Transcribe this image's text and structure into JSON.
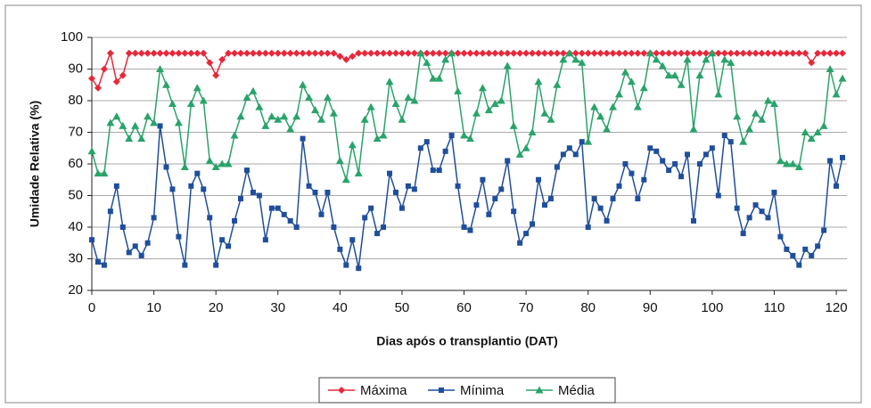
{
  "chart_data": {
    "type": "line",
    "xlabel": "Dias após o transplantio (DAT)",
    "ylabel": "Umidade Relativa (%)",
    "x": [
      0,
      1,
      2,
      3,
      4,
      5,
      6,
      7,
      8,
      9,
      10,
      11,
      12,
      13,
      14,
      15,
      16,
      17,
      18,
      19,
      20,
      21,
      22,
      23,
      24,
      25,
      26,
      27,
      28,
      29,
      30,
      31,
      32,
      33,
      34,
      35,
      36,
      37,
      38,
      39,
      40,
      41,
      42,
      43,
      44,
      45,
      46,
      47,
      48,
      49,
      50,
      51,
      52,
      53,
      54,
      55,
      56,
      57,
      58,
      59,
      60,
      61,
      62,
      63,
      64,
      65,
      66,
      67,
      68,
      69,
      70,
      71,
      72,
      73,
      74,
      75,
      76,
      77,
      78,
      79,
      80,
      81,
      82,
      83,
      84,
      85,
      86,
      87,
      88,
      89,
      90,
      91,
      92,
      93,
      94,
      95,
      96,
      97,
      98,
      99,
      100,
      101,
      102,
      103,
      104,
      105,
      106,
      107,
      108,
      109,
      110,
      111,
      112,
      113,
      114,
      115,
      116,
      117,
      118,
      119,
      120,
      121
    ],
    "series": [
      {
        "name": "Máxima",
        "color": "#e8283a",
        "marker": "diamond",
        "values": [
          87,
          84,
          90,
          95,
          86,
          88,
          95,
          95,
          95,
          95,
          95,
          95,
          95,
          95,
          95,
          95,
          95,
          95,
          95,
          92,
          88,
          93,
          95,
          95,
          95,
          95,
          95,
          95,
          95,
          95,
          95,
          95,
          95,
          95,
          95,
          95,
          95,
          95,
          95,
          95,
          94,
          93,
          94,
          95,
          95,
          95,
          95,
          95,
          95,
          95,
          95,
          95,
          95,
          95,
          95,
          95,
          95,
          95,
          95,
          95,
          95,
          95,
          95,
          95,
          95,
          95,
          95,
          95,
          95,
          95,
          95,
          95,
          95,
          95,
          95,
          95,
          95,
          95,
          95,
          95,
          95,
          95,
          95,
          95,
          95,
          95,
          95,
          95,
          95,
          95,
          95,
          95,
          95,
          95,
          95,
          95,
          95,
          95,
          95,
          95,
          95,
          95,
          95,
          95,
          95,
          95,
          95,
          95,
          95,
          95,
          95,
          95,
          95,
          95,
          95,
          95,
          92,
          95,
          95,
          95,
          95,
          95
        ]
      },
      {
        "name": "Mínima",
        "color": "#1f4e9c",
        "marker": "square",
        "values": [
          36,
          29,
          28,
          45,
          53,
          40,
          32,
          34,
          31,
          35,
          43,
          72,
          59,
          52,
          37,
          28,
          53,
          57,
          52,
          43,
          28,
          36,
          34,
          42,
          49,
          58,
          51,
          50,
          36,
          46,
          46,
          44,
          42,
          40,
          68,
          53,
          51,
          44,
          51,
          40,
          33,
          28,
          36,
          27,
          43,
          46,
          38,
          40,
          57,
          51,
          46,
          53,
          52,
          65,
          67,
          58,
          58,
          64,
          69,
          53,
          40,
          39,
          47,
          55,
          44,
          49,
          52,
          61,
          45,
          35,
          38,
          41,
          55,
          47,
          49,
          59,
          63,
          65,
          63,
          67,
          40,
          49,
          46,
          42,
          49,
          53,
          60,
          57,
          49,
          55,
          65,
          64,
          61,
          58,
          60,
          56,
          63,
          42,
          60,
          63,
          65,
          50,
          69,
          67,
          46,
          38,
          43,
          47,
          45,
          43,
          51,
          37,
          33,
          31,
          28,
          33,
          31,
          34,
          39,
          61,
          53,
          62
        ]
      },
      {
        "name": "Média",
        "color": "#2aa36b",
        "marker": "triangle",
        "values": [
          64,
          57,
          57,
          73,
          75,
          72,
          68,
          72,
          68,
          75,
          73,
          90,
          85,
          79,
          73,
          59,
          79,
          84,
          80,
          61,
          59,
          60,
          60,
          69,
          75,
          81,
          83,
          78,
          72,
          75,
          74,
          75,
          71,
          75,
          85,
          81,
          77,
          74,
          81,
          76,
          61,
          55,
          66,
          57,
          74,
          78,
          68,
          69,
          86,
          79,
          74,
          81,
          80,
          95,
          92,
          87,
          87,
          93,
          95,
          83,
          69,
          68,
          76,
          84,
          77,
          79,
          80,
          91,
          72,
          63,
          65,
          70,
          86,
          76,
          74,
          85,
          93,
          95,
          93,
          92,
          67,
          78,
          75,
          71,
          78,
          82,
          89,
          86,
          78,
          84,
          95,
          93,
          91,
          88,
          88,
          85,
          93,
          71,
          88,
          93,
          95,
          82,
          93,
          92,
          75,
          67,
          71,
          76,
          74,
          80,
          79,
          61,
          60,
          60,
          59,
          70,
          68,
          70,
          72,
          90,
          82,
          87
        ]
      }
    ],
    "xlim": [
      0,
      121
    ],
    "xticks": [
      0,
      10,
      20,
      30,
      40,
      50,
      60,
      70,
      80,
      90,
      100,
      110,
      120
    ],
    "ylim": [
      20,
      100
    ],
    "yticks": [
      20,
      30,
      40,
      50,
      60,
      70,
      80,
      90,
      100
    ],
    "grid": true,
    "legend": "bottom"
  }
}
